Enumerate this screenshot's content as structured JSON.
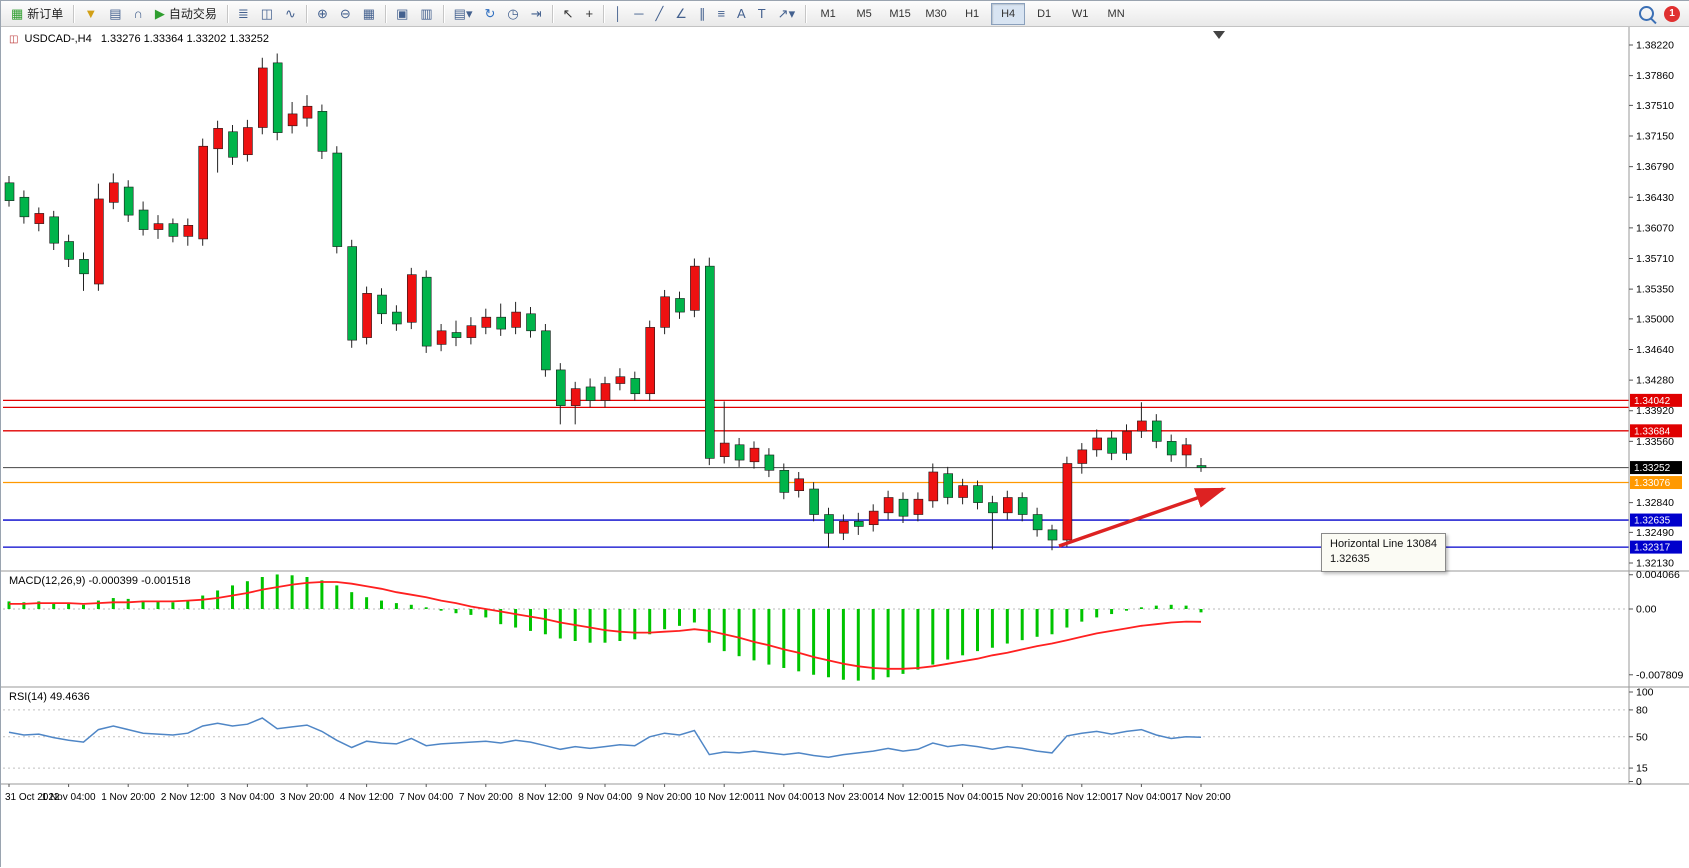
{
  "toolbar": {
    "groups": [
      [
        {
          "name": "new-order-button",
          "glyph": "▦",
          "color": "#2f9e2f",
          "label": "新订单"
        }
      ],
      [
        {
          "name": "market-watch-icon",
          "glyph": "▼",
          "color": "#d2a017"
        },
        {
          "name": "data-window-icon",
          "glyph": "▤",
          "color": "#44618f"
        },
        {
          "name": "navigator-icon",
          "glyph": "∩",
          "color": "#44618f"
        },
        {
          "name": "auto-trading-button",
          "glyph": "▶",
          "color": "#2f9e2f",
          "label": "自动交易"
        }
      ],
      [
        {
          "name": "bar-chart-icon",
          "glyph": "≣",
          "color": "#44618f"
        },
        {
          "name": "candlestick-chart-icon",
          "glyph": "◫",
          "color": "#44618f"
        },
        {
          "name": "line-chart-icon",
          "glyph": "∿",
          "color": "#44618f"
        }
      ],
      [
        {
          "name": "zoom-in-icon",
          "glyph": "⊕",
          "color": "#44618f"
        },
        {
          "name": "zoom-out-icon",
          "glyph": "⊖",
          "color": "#44618f"
        },
        {
          "name": "tile-windows-icon",
          "glyph": "▦",
          "color": "#44618f"
        }
      ],
      [
        {
          "name": "cascade-windows-icon",
          "glyph": "▣",
          "color": "#44618f"
        },
        {
          "name": "arrange-windows-icon",
          "glyph": "▥",
          "color": "#44618f"
        }
      ],
      [
        {
          "name": "new-chart-icon",
          "glyph": "▤▾",
          "color": "#44618f"
        },
        {
          "name": "profiles-icon",
          "glyph": "↻",
          "color": "#2f6fc0"
        },
        {
          "name": "period-clock-icon",
          "glyph": "◷",
          "color": "#44618f"
        },
        {
          "name": "chart-shift-icon",
          "glyph": "⇥",
          "color": "#44618f"
        }
      ],
      [
        {
          "name": "cursor-icon",
          "glyph": "↖",
          "color": "#333333"
        },
        {
          "name": "crosshair-icon",
          "glyph": "+",
          "color": "#333333"
        }
      ],
      [
        {
          "name": "vertical-line-icon",
          "glyph": "│",
          "color": "#44618f"
        },
        {
          "name": "horizontal-line-icon",
          "glyph": "─",
          "color": "#44618f"
        },
        {
          "name": "trendline-icon",
          "glyph": "╱",
          "color": "#44618f"
        },
        {
          "name": "angle-line-icon",
          "glyph": "∠",
          "color": "#44618f"
        },
        {
          "name": "channel-icon",
          "glyph": "∥",
          "color": "#44618f"
        },
        {
          "name": "fibonacci-icon",
          "glyph": "≡",
          "color": "#44618f"
        },
        {
          "name": "text-icon",
          "glyph": "A",
          "color": "#44618f"
        },
        {
          "name": "label-icon",
          "glyph": "T",
          "color": "#44618f"
        },
        {
          "name": "arrows-icon",
          "glyph": "↗▾",
          "color": "#44618f"
        }
      ]
    ],
    "timeframes": [
      "M1",
      "M5",
      "M15",
      "M30",
      "H1",
      "H4",
      "D1",
      "W1",
      "MN"
    ],
    "active_timeframe": "H4",
    "notification_count": "1"
  },
  "chart": {
    "symbol_period": "USDCAD-,H4",
    "ohlc_text": "1.33276 1.33364 1.33202 1.33252"
  },
  "tooltip": {
    "line1": "Horizontal Line 13084",
    "line2": "1.32635"
  },
  "chart_data": {
    "type": "candlestick",
    "symbol": "USDCAD",
    "period": "H4",
    "up_color": "#ee1111",
    "down_color": "#00b44a",
    "price_range": {
      "top": 1.3822,
      "bottom": 1.3213
    },
    "candles": [
      [
        1.366,
        1.3668,
        1.3632,
        1.3639
      ],
      [
        1.3643,
        1.3651,
        1.3612,
        1.362
      ],
      [
        1.3612,
        1.3631,
        1.3603,
        1.3624
      ],
      [
        1.362,
        1.3627,
        1.3581,
        1.3589
      ],
      [
        1.3591,
        1.3599,
        1.3561,
        1.357
      ],
      [
        1.357,
        1.3578,
        1.3533,
        1.3553
      ],
      [
        1.3541,
        1.3659,
        1.3533,
        1.3641
      ],
      [
        1.3637,
        1.3671,
        1.3629,
        1.366
      ],
      [
        1.3655,
        1.3663,
        1.3614,
        1.3622
      ],
      [
        1.3628,
        1.3638,
        1.3598,
        1.3605
      ],
      [
        1.3605,
        1.3622,
        1.3594,
        1.3612
      ],
      [
        1.3612,
        1.3618,
        1.359,
        1.3597
      ],
      [
        1.3597,
        1.3618,
        1.3586,
        1.361
      ],
      [
        1.3594,
        1.3712,
        1.3586,
        1.3703
      ],
      [
        1.37,
        1.3733,
        1.3672,
        1.3724
      ],
      [
        1.372,
        1.3728,
        1.3681,
        1.369
      ],
      [
        1.3693,
        1.3734,
        1.3685,
        1.3725
      ],
      [
        1.3725,
        1.3807,
        1.3717,
        1.3795
      ],
      [
        1.3801,
        1.3812,
        1.371,
        1.3719
      ],
      [
        1.3727,
        1.3755,
        1.3718,
        1.3741
      ],
      [
        1.3736,
        1.3763,
        1.3726,
        1.375
      ],
      [
        1.3744,
        1.3752,
        1.3688,
        1.3697
      ],
      [
        1.3695,
        1.3703,
        1.3577,
        1.3585
      ],
      [
        1.3585,
        1.3593,
        1.3466,
        1.3475
      ],
      [
        1.3478,
        1.3538,
        1.347,
        1.353
      ],
      [
        1.3528,
        1.3536,
        1.3494,
        1.3506
      ],
      [
        1.3508,
        1.3516,
        1.3486,
        1.3494
      ],
      [
        1.3496,
        1.356,
        1.3488,
        1.3552
      ],
      [
        1.3549,
        1.3557,
        1.346,
        1.3468
      ],
      [
        1.347,
        1.3494,
        1.3462,
        1.3486
      ],
      [
        1.3484,
        1.3498,
        1.3468,
        1.3478
      ],
      [
        1.3478,
        1.3502,
        1.347,
        1.3492
      ],
      [
        1.349,
        1.3512,
        1.3482,
        1.3502
      ],
      [
        1.3502,
        1.3518,
        1.348,
        1.3488
      ],
      [
        1.349,
        1.352,
        1.3482,
        1.3508
      ],
      [
        1.3506,
        1.3514,
        1.3478,
        1.3486
      ],
      [
        1.3486,
        1.3494,
        1.3432,
        1.344
      ],
      [
        1.344,
        1.3448,
        1.3376,
        1.3398
      ],
      [
        1.3398,
        1.3426,
        1.3376,
        1.3418
      ],
      [
        1.342,
        1.343,
        1.3396,
        1.3404
      ],
      [
        1.3404,
        1.3432,
        1.3396,
        1.3424
      ],
      [
        1.3424,
        1.3442,
        1.3416,
        1.3432
      ],
      [
        1.343,
        1.3438,
        1.3404,
        1.3412
      ],
      [
        1.3412,
        1.3498,
        1.3404,
        1.349
      ],
      [
        1.349,
        1.3534,
        1.3482,
        1.3526
      ],
      [
        1.3524,
        1.3532,
        1.35,
        1.3508
      ],
      [
        1.351,
        1.3571,
        1.3502,
        1.3562
      ],
      [
        1.3562,
        1.3572,
        1.3328,
        1.3336
      ],
      [
        1.3338,
        1.3403,
        1.333,
        1.3354
      ],
      [
        1.3352,
        1.336,
        1.3326,
        1.3334
      ],
      [
        1.3332,
        1.3356,
        1.3324,
        1.3348
      ],
      [
        1.334,
        1.3348,
        1.3314,
        1.3322
      ],
      [
        1.3322,
        1.333,
        1.3288,
        1.3296
      ],
      [
        1.3298,
        1.332,
        1.329,
        1.3312
      ],
      [
        1.33,
        1.3308,
        1.3262,
        1.327
      ],
      [
        1.327,
        1.3278,
        1.3231,
        1.3248
      ],
      [
        1.3248,
        1.327,
        1.324,
        1.3262
      ],
      [
        1.3262,
        1.3272,
        1.3246,
        1.3256
      ],
      [
        1.3258,
        1.3282,
        1.325,
        1.3274
      ],
      [
        1.3272,
        1.3298,
        1.3264,
        1.329
      ],
      [
        1.3288,
        1.3296,
        1.326,
        1.3268
      ],
      [
        1.327,
        1.3296,
        1.3262,
        1.3288
      ],
      [
        1.3286,
        1.333,
        1.3278,
        1.332
      ],
      [
        1.3318,
        1.3326,
        1.3282,
        1.329
      ],
      [
        1.329,
        1.3312,
        1.3282,
        1.3304
      ],
      [
        1.3304,
        1.331,
        1.3276,
        1.3284
      ],
      [
        1.3284,
        1.3292,
        1.3229,
        1.3272
      ],
      [
        1.3272,
        1.3298,
        1.3264,
        1.329
      ],
      [
        1.329,
        1.3296,
        1.3262,
        1.327
      ],
      [
        1.327,
        1.3278,
        1.3244,
        1.3252
      ],
      [
        1.3252,
        1.3258,
        1.3228,
        1.324
      ],
      [
        1.324,
        1.3338,
        1.3232,
        1.333
      ],
      [
        1.333,
        1.3354,
        1.3318,
        1.3346
      ],
      [
        1.3346,
        1.337,
        1.3338,
        1.336
      ],
      [
        1.336,
        1.3368,
        1.3334,
        1.3342
      ],
      [
        1.3342,
        1.3376,
        1.3334,
        1.3368
      ],
      [
        1.3368,
        1.3402,
        1.336,
        1.338
      ],
      [
        1.338,
        1.3388,
        1.3348,
        1.3356
      ],
      [
        1.3356,
        1.3364,
        1.3332,
        1.334
      ],
      [
        1.334,
        1.336,
        1.3326,
        1.3352
      ],
      [
        1.33276,
        1.33364,
        1.33202,
        1.33252
      ]
    ],
    "time_labels": [
      {
        "i": 0,
        "t": "31 Oct 2022"
      },
      {
        "i": 4,
        "t": "1 Nov 04:00"
      },
      {
        "i": 8,
        "t": "1 Nov 20:00"
      },
      {
        "i": 12,
        "t": "2 Nov 12:00"
      },
      {
        "i": 16,
        "t": "3 Nov 04:00"
      },
      {
        "i": 20,
        "t": "3 Nov 20:00"
      },
      {
        "i": 24,
        "t": "4 Nov 12:00"
      },
      {
        "i": 28,
        "t": "7 Nov 04:00"
      },
      {
        "i": 32,
        "t": "7 Nov 20:00"
      },
      {
        "i": 36,
        "t": "8 Nov 12:00"
      },
      {
        "i": 40,
        "t": "9 Nov 04:00"
      },
      {
        "i": 44,
        "t": "9 Nov 20:00"
      },
      {
        "i": 48,
        "t": "10 Nov 12:00"
      },
      {
        "i": 52,
        "t": "11 Nov 04:00"
      },
      {
        "i": 56,
        "t": "13 Nov 23:00"
      },
      {
        "i": 60,
        "t": "14 Nov 12:00"
      },
      {
        "i": 64,
        "t": "15 Nov 04:00"
      },
      {
        "i": 68,
        "t": "15 Nov 20:00"
      },
      {
        "i": 72,
        "t": "16 Nov 12:00"
      },
      {
        "i": 76,
        "t": "17 Nov 04:00"
      },
      {
        "i": 80,
        "t": "17 Nov 20:00"
      }
    ],
    "price_axis_labels": [
      {
        "price": 1.3822,
        "text": "1.38220"
      },
      {
        "price": 1.3786,
        "text": "1.37860"
      },
      {
        "price": 1.3751,
        "text": "1.37510"
      },
      {
        "price": 1.3715,
        "text": "1.37150"
      },
      {
        "price": 1.3679,
        "text": "1.36790"
      },
      {
        "price": 1.3643,
        "text": "1.36430"
      },
      {
        "price": 1.3607,
        "text": "1.36070"
      },
      {
        "price": 1.3571,
        "text": "1.35710"
      },
      {
        "price": 1.3535,
        "text": "1.35350"
      },
      {
        "price": 1.35,
        "text": "1.35000"
      },
      {
        "price": 1.3464,
        "text": "1.34640"
      },
      {
        "price": 1.3428,
        "text": "1.34280"
      },
      {
        "price": 1.3392,
        "text": "1.33920"
      },
      {
        "price": 1.3356,
        "text": "1.33560"
      },
      {
        "price": 1.3284,
        "text": "1.32840"
      },
      {
        "price": 1.3249,
        "text": "1.32490"
      },
      {
        "price": 1.3213,
        "text": "1.32130"
      }
    ],
    "horizontal_lines": [
      {
        "price": 1.34042,
        "text": "1.34042",
        "color": "#e00000",
        "labeled": true
      },
      {
        "price": 1.3396,
        "text": "",
        "color": "#e00000",
        "labeled": false
      },
      {
        "price": 1.33684,
        "text": "1.33684",
        "color": "#e00000",
        "labeled": true
      },
      {
        "price": 1.33076,
        "text": "1.33076",
        "color": "#ff9900",
        "labeled": true
      },
      {
        "price": 1.32635,
        "text": "1.32635",
        "color": "#0000cc",
        "labeled": true
      },
      {
        "price": 1.32317,
        "text": "1.32317",
        "color": "#0000cc",
        "labeled": true
      }
    ],
    "current_price": {
      "value": 1.33252,
      "text": "1.33252",
      "color": "#000000"
    },
    "trend_arrow": {
      "color": "#dd2222"
    },
    "macd": {
      "label": "MACD(12,26,9) -0.000399 -0.001518",
      "histogram_color": "#00c400",
      "signal_color": "#ff2020",
      "axis_labels": [
        {
          "value": 0.004066,
          "text": "0.004066"
        },
        {
          "value": 0,
          "text": "0.00"
        },
        {
          "value": -0.007809,
          "text": "-0.007809"
        }
      ],
      "histogram": [
        0.0009,
        0.0008,
        0.0009,
        0.0007,
        0.0006,
        0.0005,
        0.001,
        0.0013,
        0.0012,
        0.001,
        0.0009,
        0.0008,
        0.001,
        0.0016,
        0.0022,
        0.0028,
        0.0033,
        0.0038,
        0.0041,
        0.004,
        0.0038,
        0.0034,
        0.0028,
        0.002,
        0.0014,
        0.001,
        0.0007,
        0.0005,
        0.0002,
        -0.0002,
        -0.0005,
        -0.0007,
        -0.001,
        -0.0018,
        -0.0022,
        -0.0026,
        -0.003,
        -0.0035,
        -0.0038,
        -0.004,
        -0.004,
        -0.0038,
        -0.0036,
        -0.003,
        -0.0024,
        -0.002,
        -0.0016,
        -0.004,
        -0.005,
        -0.0056,
        -0.0061,
        -0.0066,
        -0.007,
        -0.0074,
        -0.0078,
        -0.0081,
        -0.0084,
        -0.0085,
        -0.0084,
        -0.0081,
        -0.0077,
        -0.0072,
        -0.0066,
        -0.006,
        -0.0055,
        -0.005,
        -0.0046,
        -0.0041,
        -0.0037,
        -0.0033,
        -0.003,
        -0.0022,
        -0.0015,
        -0.001,
        -0.0006,
        -0.0002,
        0.0002,
        0.0004,
        0.0005,
        0.0004,
        -0.000399
      ],
      "signal": [
        0.0006,
        0.0006,
        0.0007,
        0.0007,
        0.0007,
        0.0006,
        0.0007,
        0.0008,
        0.0008,
        0.0009,
        0.0009,
        0.0009,
        0.001,
        0.0011,
        0.0013,
        0.0016,
        0.0019,
        0.0023,
        0.0026,
        0.0029,
        0.0031,
        0.0032,
        0.0032,
        0.003,
        0.0027,
        0.0024,
        0.002,
        0.0017,
        0.0014,
        0.001,
        0.0007,
        0.0003,
        0.0,
        -0.0003,
        -0.0006,
        -0.0009,
        -0.0012,
        -0.0016,
        -0.0019,
        -0.0022,
        -0.0025,
        -0.0027,
        -0.0028,
        -0.0028,
        -0.0027,
        -0.0026,
        -0.0024,
        -0.0026,
        -0.003,
        -0.0034,
        -0.0039,
        -0.0043,
        -0.0048,
        -0.0052,
        -0.0057,
        -0.0061,
        -0.0065,
        -0.0068,
        -0.007,
        -0.0071,
        -0.0071,
        -0.007,
        -0.0068,
        -0.0065,
        -0.0062,
        -0.0059,
        -0.0055,
        -0.0052,
        -0.0048,
        -0.0044,
        -0.0041,
        -0.0037,
        -0.0033,
        -0.0029,
        -0.0026,
        -0.0023,
        -0.002,
        -0.0018,
        -0.0016,
        -0.0015,
        -0.001518
      ]
    },
    "rsi": {
      "label": "RSI(14) 49.4636",
      "line_color": "#4f86c6",
      "levels": [
        {
          "value": 100,
          "text": "100"
        },
        {
          "value": 80,
          "text": "80"
        },
        {
          "value": 50,
          "text": "50"
        },
        {
          "value": 15,
          "text": "15"
        },
        {
          "value": 0,
          "text": "0"
        }
      ],
      "values": [
        55,
        52,
        53,
        49,
        46,
        44,
        58,
        62,
        58,
        54,
        53,
        52,
        54,
        62,
        65,
        62,
        64,
        71,
        59,
        61,
        63,
        56,
        46,
        38,
        45,
        43,
        42,
        48,
        40,
        42,
        43,
        44,
        45,
        43,
        46,
        44,
        40,
        36,
        39,
        37,
        39,
        41,
        40,
        50,
        54,
        52,
        57,
        30,
        33,
        32,
        34,
        32,
        30,
        32,
        29,
        27,
        30,
        32,
        34,
        37,
        34,
        36,
        43,
        39,
        41,
        39,
        36,
        39,
        37,
        34,
        32,
        51,
        54,
        56,
        53,
        56,
        58,
        52,
        48,
        50,
        49.46
      ]
    }
  }
}
